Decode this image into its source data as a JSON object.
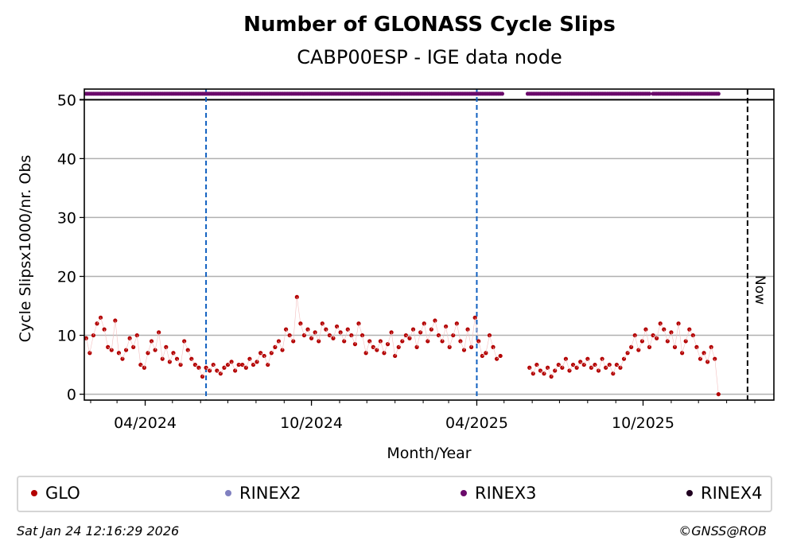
{
  "chart_data": {
    "type": "scatter",
    "title": "Number of GLONASS Cycle Slips",
    "subtitle": "CABP00ESP - IGE data node",
    "xlabel": "Month/Year",
    "ylabel": "Cycle Slipsx1000/nr. Obs",
    "ylim": [
      -1,
      51.8
    ],
    "yticks": [
      0,
      10,
      20,
      30,
      40,
      50
    ],
    "xticks": [
      {
        "date": "2024-04-01",
        "label": "04/2024"
      },
      {
        "date": "2024-10-01",
        "label": "10/2024"
      },
      {
        "date": "2025-04-01",
        "label": "04/2025"
      },
      {
        "date": "2025-10-01",
        "label": "10/2025"
      }
    ],
    "xlim": [
      "2024-01-25",
      "2026-02-22"
    ],
    "grid": "y",
    "vlines_blue": [
      "2024-06-07",
      "2025-04-01"
    ],
    "now": {
      "date": "2026-01-24",
      "label": "Now"
    },
    "series": [
      {
        "name": "GLO",
        "color": "#b30000",
        "start": "2024-01-27",
        "step_days": 4,
        "values": [
          9.5,
          7,
          10,
          12,
          13,
          11,
          8,
          7.5,
          12.5,
          7,
          6,
          7.5,
          9.5,
          8,
          10,
          5,
          4.5,
          7,
          9,
          7.5,
          10.5,
          6,
          8,
          5.5,
          7,
          6,
          5,
          9,
          7.5,
          6,
          5,
          4.5,
          3,
          4.5,
          4,
          5,
          4,
          3.5,
          4.5,
          5,
          5.5,
          4,
          5,
          5,
          4.5,
          6,
          5,
          5.5,
          7,
          6.5,
          5,
          7,
          8,
          9,
          7.5,
          11,
          10,
          9,
          16.5,
          12,
          10,
          11,
          9.5,
          10.5,
          9,
          12,
          11,
          10,
          9.5,
          11.5,
          10.5,
          9,
          11,
          10,
          8.5,
          12,
          10,
          7,
          9,
          8,
          7.5,
          9,
          7,
          8.5,
          10.5,
          6.5,
          8,
          9,
          10,
          9.5,
          11,
          8,
          10.5,
          12,
          9,
          11,
          12.5,
          10,
          9,
          11.5,
          8,
          10,
          12,
          9,
          7.5,
          11,
          8,
          13,
          9,
          6.5,
          7,
          10,
          8,
          6,
          6.5,
          null,
          null,
          null,
          null,
          null,
          null,
          null,
          4.5,
          3.5,
          5,
          4,
          3.5,
          4.5,
          3,
          4,
          5,
          4.5,
          6,
          4,
          5,
          4.5,
          5.5,
          5,
          6,
          4.5,
          5,
          4,
          6,
          4.5,
          5,
          3.5,
          5,
          4.5,
          6,
          7,
          8,
          10,
          7.5,
          9,
          11,
          8,
          10,
          9.5,
          12,
          11,
          9,
          10.5,
          8,
          12,
          7,
          9,
          11,
          10,
          8,
          6,
          7,
          5.5,
          8,
          6,
          0
        ]
      },
      {
        "name": "RINEX2",
        "color": "#8080c0",
        "ranges": []
      },
      {
        "name": "RINEX3",
        "color": "#6a0a6a",
        "value": 51,
        "ranges": [
          [
            "2024-01-27",
            "2025-04-30"
          ],
          [
            "2025-05-27",
            "2025-10-08"
          ],
          [
            "2025-10-12",
            "2025-12-24"
          ]
        ]
      },
      {
        "name": "RINEX4",
        "color": "#200020",
        "ranges": []
      }
    ]
  },
  "footer": {
    "timestamp": "Sat Jan 24 12:16:29 2026",
    "credit": "©GNSS@ROB"
  }
}
